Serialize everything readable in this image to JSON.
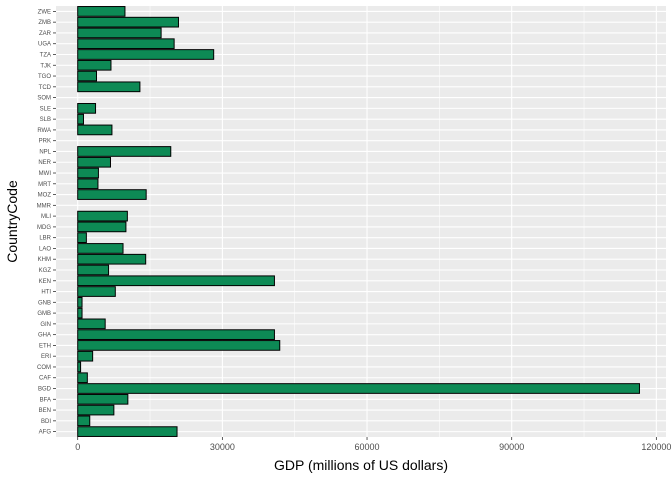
{
  "chart_data": {
    "type": "bar",
    "orientation": "horizontal",
    "xlabel": "GDP (millions of US dollars)",
    "ylabel": "CountryCode",
    "xlim": [
      -4500,
      122000
    ],
    "xticks": [
      0,
      30000,
      60000,
      90000,
      120000
    ],
    "xtick_labels": [
      "0",
      "30000",
      "60000",
      "90000",
      "120000"
    ],
    "grid": true,
    "categories": [
      "AFG",
      "BDI",
      "BEN",
      "BFA",
      "BGD",
      "CAF",
      "COM",
      "ERI",
      "ETH",
      "GHA",
      "GIN",
      "GMB",
      "GNB",
      "HTI",
      "KEN",
      "KGZ",
      "KHM",
      "LAO",
      "LBR",
      "MDG",
      "MLI",
      "MMR",
      "MOZ",
      "MRT",
      "MWI",
      "NER",
      "NPL",
      "PRK",
      "RWA",
      "SLB",
      "SLE",
      "SOM",
      "TCD",
      "TGO",
      "TJK",
      "TZA",
      "UGA",
      "ZAR",
      "ZMB",
      "ZWE"
    ],
    "values": [
      20600,
      2500,
      7500,
      10400,
      116500,
      2000,
      600,
      3100,
      41900,
      40800,
      5700,
      900,
      900,
      7800,
      40800,
      6400,
      14100,
      9400,
      1800,
      10000,
      10300,
      0,
      14200,
      4200,
      4300,
      6800,
      19300,
      0,
      7100,
      1200,
      3700,
      0,
      12900,
      3900,
      6900,
      28200,
      20000,
      17300,
      20900,
      9800
    ]
  },
  "colors": {
    "panel_background": "#EBEBEB",
    "gridline": "#FFFFFF",
    "bar_fill": "#0D8A55",
    "bar_outline": "#000000"
  }
}
